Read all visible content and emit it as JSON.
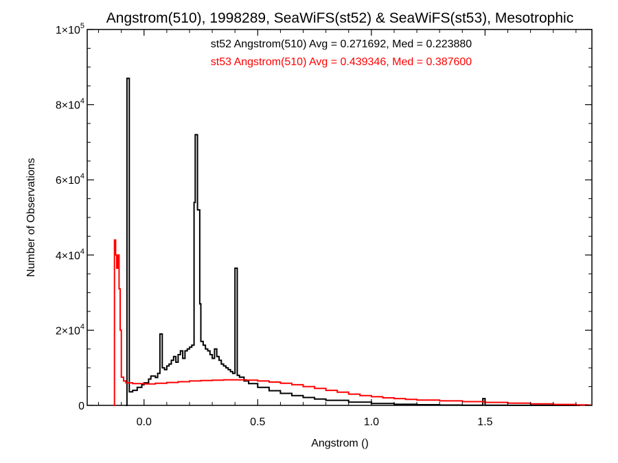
{
  "chart_data": {
    "type": "line",
    "drawstyle": "steps",
    "title": "Angstrom(510), 1998289, SeaWiFS(st52) & SeaWiFS(st53), Mesotrophic",
    "xlabel": "Angstrom ()",
    "ylabel": "Number of Observations",
    "xlim": [
      -0.25,
      1.97
    ],
    "ylim": [
      0,
      100000
    ],
    "grid": false,
    "x_ticks": [
      {
        "value": 0.0,
        "label": "0.0"
      },
      {
        "value": 0.5,
        "label": "0.5"
      },
      {
        "value": 1.0,
        "label": "1.0"
      },
      {
        "value": 1.5,
        "label": "1.5"
      }
    ],
    "y_ticks": [
      {
        "value": 0,
        "label": "0"
      },
      {
        "value": 20000,
        "label": "2×10",
        "exp": "4"
      },
      {
        "value": 40000,
        "label": "4×10",
        "exp": "4"
      },
      {
        "value": 60000,
        "label": "6×10",
        "exp": "4"
      },
      {
        "value": 80000,
        "label": "8×10",
        "exp": "4"
      },
      {
        "value": 100000,
        "label": "1×10",
        "exp": "5"
      }
    ],
    "annotations": [
      {
        "text": "st52 Angstrom(510) Avg = 0.271692, Med = 0.223880",
        "color": "#000000"
      },
      {
        "text": "st53 Angstrom(510) Avg = 0.439346, Med = 0.387600",
        "color": "#ff0000"
      }
    ],
    "series": [
      {
        "color": "#000000",
        "points": [
          [
            -0.08,
            0
          ],
          [
            -0.075,
            87000
          ],
          [
            -0.065,
            3600
          ],
          [
            -0.05,
            4000
          ],
          [
            -0.03,
            4800
          ],
          [
            -0.01,
            5500
          ],
          [
            0.0,
            6000
          ],
          [
            0.02,
            7000
          ],
          [
            0.03,
            7800
          ],
          [
            0.05,
            7400
          ],
          [
            0.06,
            8500
          ],
          [
            0.07,
            19000
          ],
          [
            0.08,
            10000
          ],
          [
            0.09,
            9500
          ],
          [
            0.1,
            10500
          ],
          [
            0.11,
            11000
          ],
          [
            0.12,
            12000
          ],
          [
            0.13,
            13000
          ],
          [
            0.14,
            11500
          ],
          [
            0.15,
            13500
          ],
          [
            0.16,
            14500
          ],
          [
            0.17,
            12500
          ],
          [
            0.18,
            14500
          ],
          [
            0.19,
            15000
          ],
          [
            0.2,
            15500
          ],
          [
            0.21,
            16000
          ],
          [
            0.22,
            54000
          ],
          [
            0.225,
            72000
          ],
          [
            0.235,
            52000
          ],
          [
            0.245,
            27000
          ],
          [
            0.25,
            17000
          ],
          [
            0.26,
            16000
          ],
          [
            0.27,
            15000
          ],
          [
            0.28,
            14500
          ],
          [
            0.29,
            13500
          ],
          [
            0.3,
            12500
          ],
          [
            0.31,
            15000
          ],
          [
            0.32,
            13000
          ],
          [
            0.33,
            12000
          ],
          [
            0.34,
            11000
          ],
          [
            0.35,
            10500
          ],
          [
            0.36,
            10000
          ],
          [
            0.37,
            9500
          ],
          [
            0.38,
            9000
          ],
          [
            0.39,
            8500
          ],
          [
            0.4,
            36500
          ],
          [
            0.41,
            8000
          ],
          [
            0.42,
            7500
          ],
          [
            0.44,
            6500
          ],
          [
            0.46,
            5800
          ],
          [
            0.5,
            4800
          ],
          [
            0.55,
            3900
          ],
          [
            0.6,
            3200
          ],
          [
            0.65,
            2600
          ],
          [
            0.7,
            2100
          ],
          [
            0.75,
            1700
          ],
          [
            0.8,
            1350
          ],
          [
            0.9,
            850
          ],
          [
            1.0,
            500
          ],
          [
            1.1,
            300
          ],
          [
            1.2,
            180
          ],
          [
            1.3,
            100
          ],
          [
            1.4,
            60
          ],
          [
            1.48,
            40
          ],
          [
            1.49,
            1800
          ],
          [
            1.5,
            40
          ],
          [
            1.6,
            20
          ],
          [
            1.7,
            10
          ],
          [
            1.8,
            5
          ],
          [
            1.9,
            2
          ]
        ]
      },
      {
        "color": "#ff0000",
        "points": [
          [
            -0.135,
            0
          ],
          [
            -0.13,
            44000
          ],
          [
            -0.125,
            40000
          ],
          [
            -0.12,
            36500
          ],
          [
            -0.115,
            40000
          ],
          [
            -0.11,
            31000
          ],
          [
            -0.105,
            20000
          ],
          [
            -0.1,
            7500
          ],
          [
            -0.09,
            6500
          ],
          [
            -0.08,
            6000
          ],
          [
            -0.05,
            5800
          ],
          [
            0.0,
            5700
          ],
          [
            0.05,
            5900
          ],
          [
            0.1,
            6100
          ],
          [
            0.15,
            6300
          ],
          [
            0.2,
            6500
          ],
          [
            0.25,
            6600
          ],
          [
            0.3,
            6700
          ],
          [
            0.35,
            6800
          ],
          [
            0.4,
            6800
          ],
          [
            0.45,
            6700
          ],
          [
            0.5,
            6500
          ],
          [
            0.55,
            6200
          ],
          [
            0.6,
            5900
          ],
          [
            0.65,
            5500
          ],
          [
            0.7,
            5000
          ],
          [
            0.75,
            4500
          ],
          [
            0.8,
            4000
          ],
          [
            0.85,
            3500
          ],
          [
            0.9,
            3000
          ],
          [
            0.95,
            2600
          ],
          [
            1.0,
            2300
          ],
          [
            1.05,
            2000
          ],
          [
            1.1,
            1800
          ],
          [
            1.15,
            1600
          ],
          [
            1.2,
            1400
          ],
          [
            1.3,
            1200
          ],
          [
            1.4,
            1000
          ],
          [
            1.5,
            800
          ],
          [
            1.6,
            600
          ],
          [
            1.7,
            400
          ],
          [
            1.8,
            250
          ],
          [
            1.9,
            150
          ],
          [
            1.95,
            100
          ]
        ]
      }
    ]
  }
}
